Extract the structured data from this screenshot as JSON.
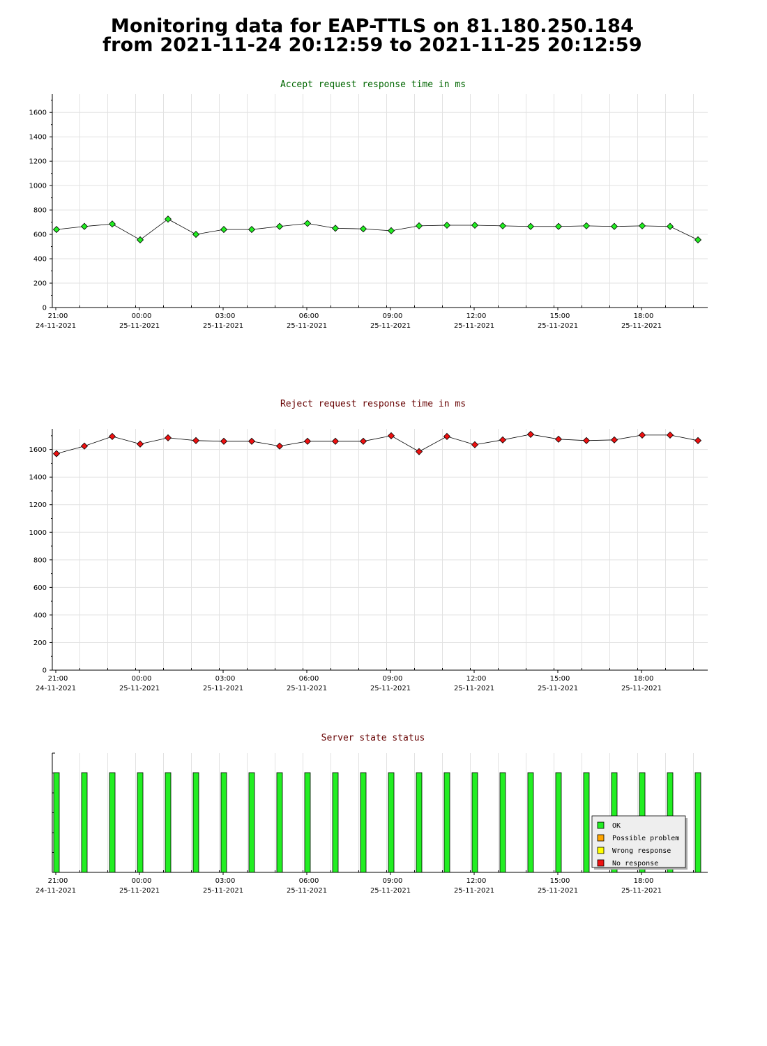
{
  "page": {
    "title_line1": "Monitoring data for EAP-TTLS on 81.180.250.184",
    "title_line2": "from 2021-11-24 20:12:59 to 2021-11-25 20:12:59"
  },
  "x_axis": {
    "ticks": [
      {
        "time": "21:00",
        "date": "24-11-2021",
        "hour": 0
      },
      {
        "time": "00:00",
        "date": "25-11-2021",
        "hour": 3
      },
      {
        "time": "03:00",
        "date": "25-11-2021",
        "hour": 6
      },
      {
        "time": "06:00",
        "date": "25-11-2021",
        "hour": 9
      },
      {
        "time": "09:00",
        "date": "25-11-2021",
        "hour": 12
      },
      {
        "time": "12:00",
        "date": "25-11-2021",
        "hour": 15
      },
      {
        "time": "15:00",
        "date": "25-11-2021",
        "hour": 18
      },
      {
        "time": "18:00",
        "date": "25-11-2021",
        "hour": 21
      }
    ]
  },
  "chart_data": [
    {
      "type": "line",
      "title": "Accept request response time in ms",
      "title_color": "#006600",
      "marker_color": "#22ee22",
      "ylim": [
        0,
        1750
      ],
      "y_ticks": [
        0,
        200,
        400,
        600,
        800,
        1000,
        1200,
        1400,
        1600
      ],
      "x": [
        -0.13,
        0.87,
        1.87,
        2.87,
        3.87,
        4.87,
        5.87,
        6.87,
        7.87,
        8.87,
        9.87,
        10.87,
        11.87,
        12.87,
        13.87,
        14.87,
        15.87,
        16.87,
        17.87,
        18.87,
        19.87,
        20.87,
        21.87,
        22.87
      ],
      "values": [
        640,
        665,
        685,
        555,
        725,
        600,
        640,
        640,
        665,
        690,
        650,
        645,
        630,
        670,
        675,
        675,
        670,
        665,
        665,
        670,
        665,
        670,
        665,
        555
      ],
      "grid": true
    },
    {
      "type": "line",
      "title": "Reject request response time in ms",
      "title_color": "#660000",
      "marker_color": "#ee1111",
      "ylim": [
        0,
        1750
      ],
      "y_ticks": [
        0,
        200,
        400,
        600,
        800,
        1000,
        1200,
        1400,
        1600
      ],
      "x": [
        -0.13,
        0.87,
        1.87,
        2.87,
        3.87,
        4.87,
        5.87,
        6.87,
        7.87,
        8.87,
        9.87,
        10.87,
        11.87,
        12.87,
        13.87,
        14.87,
        15.87,
        16.87,
        17.87,
        18.87,
        19.87,
        20.87,
        21.87,
        22.87
      ],
      "values": [
        1570,
        1625,
        1695,
        1640,
        1685,
        1665,
        1660,
        1660,
        1625,
        1660,
        1660,
        1660,
        1700,
        1585,
        1695,
        1635,
        1670,
        1710,
        1675,
        1665,
        1670,
        1705,
        1705,
        1665
      ],
      "grid": true
    },
    {
      "type": "bar",
      "title": "Server state status",
      "title_color": "#660000",
      "x": [
        -0.13,
        0.87,
        1.87,
        2.87,
        3.87,
        4.87,
        5.87,
        6.87,
        7.87,
        8.87,
        9.87,
        10.87,
        11.87,
        12.87,
        13.87,
        14.87,
        15.87,
        16.87,
        17.87,
        18.87,
        19.87,
        20.87,
        21.87,
        22.87
      ],
      "states": [
        "OK",
        "OK",
        "OK",
        "OK",
        "OK",
        "OK",
        "OK",
        "OK",
        "OK",
        "OK",
        "OK",
        "OK",
        "OK",
        "OK",
        "OK",
        "OK",
        "OK",
        "OK",
        "OK",
        "OK",
        "OK",
        "OK",
        "OK",
        "OK"
      ],
      "legend_position": "bottom-right",
      "legend": [
        {
          "label": "OK",
          "color": "#22ee22"
        },
        {
          "label": "Possible problem",
          "color": "#ffa500"
        },
        {
          "label": "Wrong response",
          "color": "#ffff00"
        },
        {
          "label": "No response",
          "color": "#ee1111"
        }
      ]
    }
  ]
}
